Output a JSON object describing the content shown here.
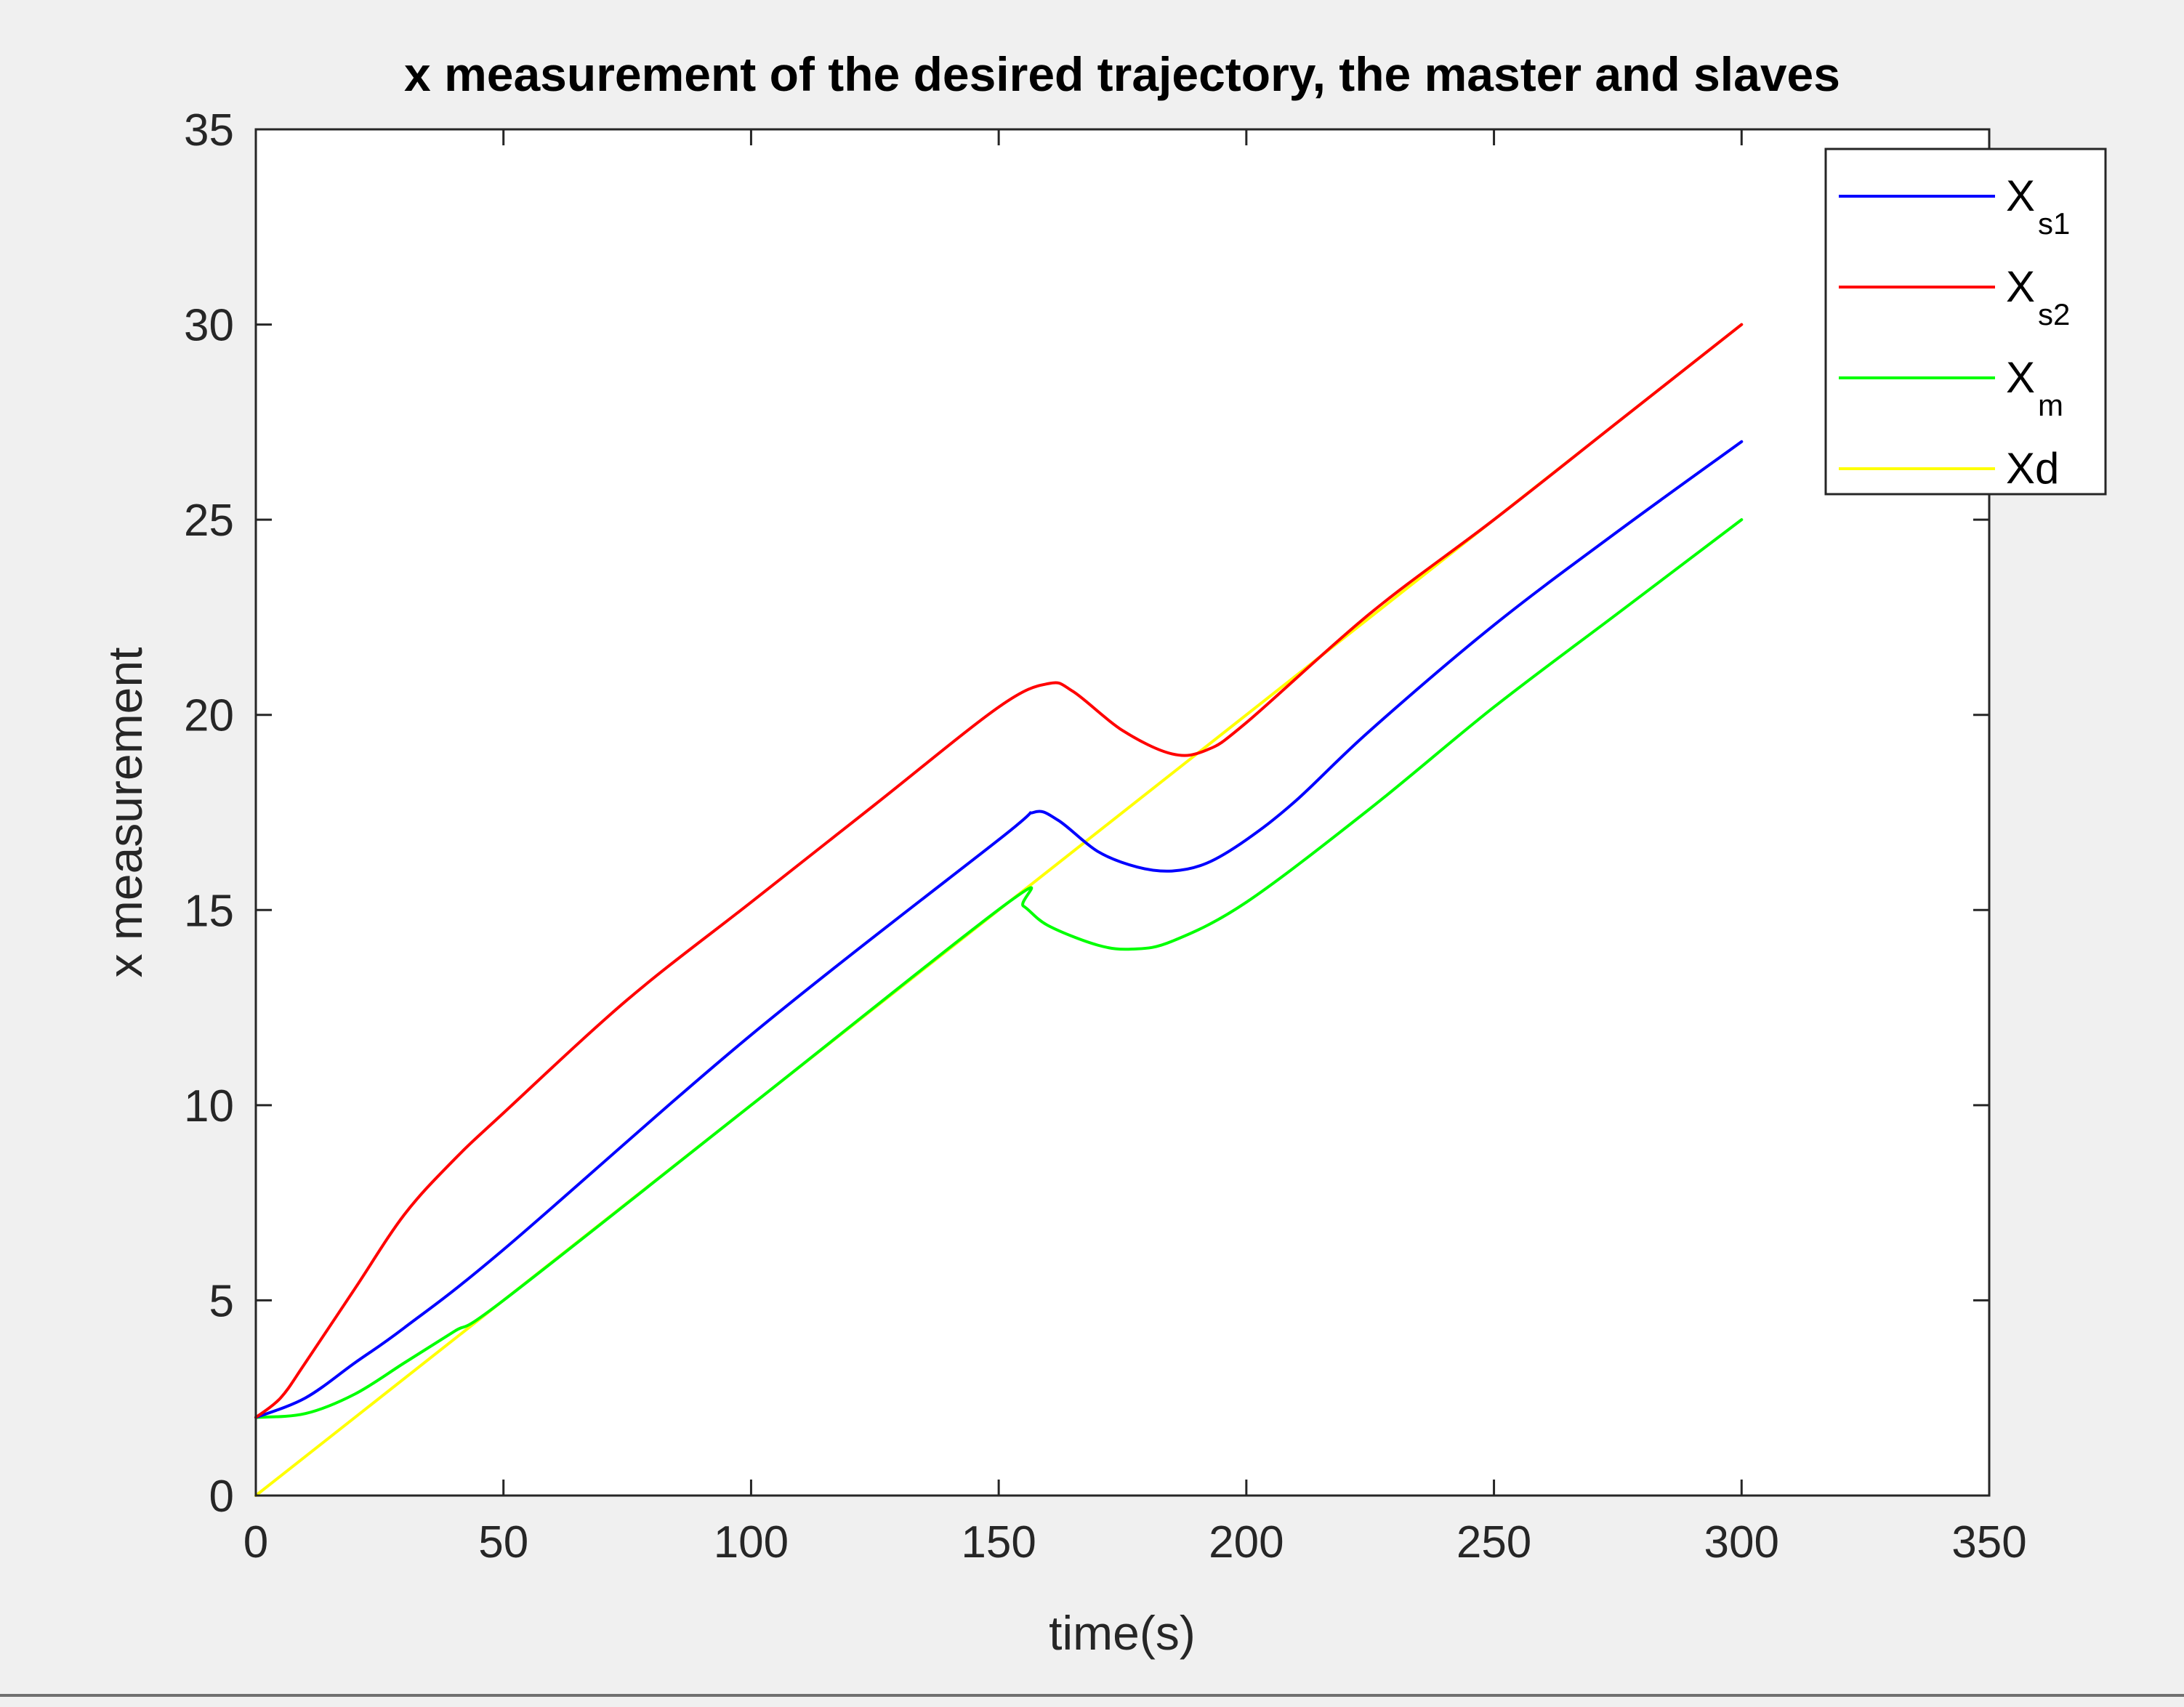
{
  "chart_data": {
    "type": "line",
    "title": "x measurement of the desired trajectory, the master and slaves",
    "xlabel": "time(s)",
    "ylabel": "x measurement",
    "xlim": [
      0,
      350
    ],
    "ylim": [
      0,
      35
    ],
    "xticks": [
      0,
      50,
      100,
      150,
      200,
      250,
      300,
      350
    ],
    "yticks": [
      0,
      5,
      10,
      15,
      20,
      25,
      30,
      35
    ],
    "grid": false,
    "legend_position": "top-right",
    "series": [
      {
        "name": "X_s1",
        "label_main": "X",
        "label_sub": "s1",
        "color": "#0000ff",
        "points": [
          [
            0,
            2
          ],
          [
            10,
            2.5
          ],
          [
            20,
            3.4
          ],
          [
            30,
            4.3
          ],
          [
            50,
            6.3
          ],
          [
            100,
            11.8
          ],
          [
            150,
            16.8
          ],
          [
            157,
            17.5
          ],
          [
            162,
            17.3
          ],
          [
            170,
            16.5
          ],
          [
            178,
            16.1
          ],
          [
            185,
            16
          ],
          [
            192,
            16.2
          ],
          [
            200,
            16.8
          ],
          [
            210,
            17.8
          ],
          [
            225,
            19.6
          ],
          [
            250,
            22.3
          ],
          [
            275,
            24.7
          ],
          [
            300,
            27
          ]
        ]
      },
      {
        "name": "X_s2",
        "label_main": "X",
        "label_sub": "s2",
        "color": "#ff0000",
        "points": [
          [
            0,
            2
          ],
          [
            5,
            2.5
          ],
          [
            10,
            3.4
          ],
          [
            20,
            5.3
          ],
          [
            30,
            7.2
          ],
          [
            40,
            8.6
          ],
          [
            50,
            9.8
          ],
          [
            75,
            12.7
          ],
          [
            100,
            15.2
          ],
          [
            125,
            17.7
          ],
          [
            150,
            20.2
          ],
          [
            160,
            20.8
          ],
          [
            165,
            20.6
          ],
          [
            175,
            19.6
          ],
          [
            185,
            19
          ],
          [
            192,
            19.1
          ],
          [
            200,
            19.8
          ],
          [
            225,
            22.6
          ],
          [
            250,
            25
          ],
          [
            275,
            27.5
          ],
          [
            300,
            30
          ]
        ]
      },
      {
        "name": "X_m",
        "label_main": "X",
        "label_sub": "m",
        "color": "#00ff00",
        "points": [
          [
            0,
            2
          ],
          [
            10,
            2.1
          ],
          [
            20,
            2.6
          ],
          [
            30,
            3.4
          ],
          [
            40,
            4.2
          ],
          [
            50,
            5
          ],
          [
            100,
            10
          ],
          [
            152,
            15.2
          ],
          [
            155,
            15.1
          ],
          [
            160,
            14.6
          ],
          [
            170,
            14.1
          ],
          [
            177,
            14
          ],
          [
            185,
            14.2
          ],
          [
            200,
            15.2
          ],
          [
            225,
            17.6
          ],
          [
            250,
            20.2
          ],
          [
            275,
            22.6
          ],
          [
            300,
            25
          ]
        ]
      },
      {
        "name": "Xd",
        "label_main": "Xd",
        "label_sub": "",
        "color": "#ffff00",
        "points": [
          [
            0,
            0
          ],
          [
            300,
            30
          ]
        ]
      }
    ]
  }
}
